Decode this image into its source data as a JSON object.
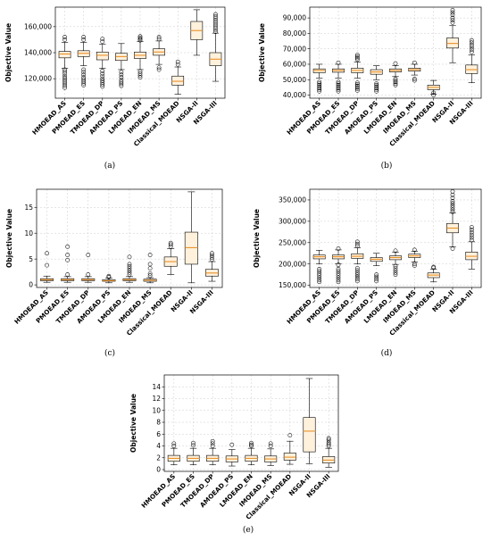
{
  "chart_data": [
    {
      "type": "box",
      "caption": "(a)",
      "ylabel": "Objective Value",
      "categories": [
        "HMOEAD_AS",
        "PMOEAD_ES",
        "TMOEAD_DP",
        "AMOEAD_PS",
        "LMOEAD_EN",
        "IMOEAD_MS",
        "Classical_MOEAD",
        "NSGA-II",
        "NSGA-III"
      ],
      "ylim": [
        105000,
        175000
      ],
      "yticks": [
        120000,
        140000,
        160000
      ],
      "ytick_labels": [
        "120,000",
        "140,000",
        "160,000"
      ],
      "boxes": [
        {
          "whislo": 128000,
          "q1": 136000,
          "med": 139000,
          "q3": 141000,
          "whishi": 148000,
          "fliers": [
            113000,
            114500,
            116000,
            117500,
            119000,
            120500,
            122000,
            124000,
            125500,
            127000,
            150000,
            152000
          ]
        },
        {
          "whislo": 130000,
          "q1": 137000,
          "med": 139500,
          "q3": 141500,
          "whishi": 148000,
          "fliers": [
            115000,
            116500,
            118000,
            119500,
            121000,
            123000,
            125000,
            127000,
            150000,
            152000
          ]
        },
        {
          "whislo": 128000,
          "q1": 134500,
          "med": 138000,
          "q3": 140500,
          "whishi": 146500,
          "fliers": [
            114000,
            115500,
            117000,
            118500,
            120000,
            122000,
            124000,
            126000,
            148500,
            150500
          ]
        },
        {
          "whislo": 127000,
          "q1": 134000,
          "med": 137000,
          "q3": 139500,
          "whishi": 147000,
          "fliers": [
            114500,
            116000,
            117500,
            119000,
            121000,
            123000,
            125000
          ]
        },
        {
          "whislo": 127000,
          "q1": 135500,
          "med": 138000,
          "q3": 140500,
          "whishi": 148500,
          "fliers": [
            121000,
            122500,
            124000,
            125500,
            149500,
            150500,
            151500,
            152500
          ]
        },
        {
          "whislo": 131000,
          "q1": 138000,
          "med": 140500,
          "q3": 143000,
          "whishi": 149000,
          "fliers": [
            127000,
            128500,
            150500,
            152000
          ]
        },
        {
          "whislo": 108000,
          "q1": 115000,
          "med": 118000,
          "q3": 122000,
          "whishi": 129000,
          "fliers": [
            131000,
            133000
          ]
        },
        {
          "whislo": 138000,
          "q1": 150000,
          "med": 157000,
          "q3": 164000,
          "whishi": 173000,
          "fliers": []
        },
        {
          "whislo": 118000,
          "q1": 130000,
          "med": 135000,
          "q3": 140000,
          "whishi": 155000,
          "fliers": [
            156000,
            157500,
            159000,
            160500,
            162000,
            163500,
            165000,
            166500,
            168000,
            169500
          ]
        }
      ]
    },
    {
      "type": "box",
      "caption": "(b)",
      "ylabel": "Objective Value",
      "categories": [
        "HMOEAD_AS",
        "PMOEAD_ES",
        "TMOEAD_DP",
        "AMOEAD_PS",
        "LMOEAD_EN",
        "IMOEAD_MS",
        "Classical_MOEAD",
        "NSGA-II",
        "NSGA-III"
      ],
      "ylim": [
        38000,
        97000
      ],
      "yticks": [
        40000,
        50000,
        60000,
        70000,
        80000,
        90000
      ],
      "ytick_labels": [
        "40,000",
        "50,000",
        "60,000",
        "70,000",
        "80,000",
        "90,000"
      ],
      "boxes": [
        {
          "whislo": 51000,
          "q1": 54500,
          "med": 56000,
          "q3": 57000,
          "whishi": 60000,
          "fliers": [
            42500,
            43500,
            44500,
            45500,
            46500,
            47500,
            48500
          ]
        },
        {
          "whislo": 51000,
          "q1": 54800,
          "med": 56000,
          "q3": 57000,
          "whishi": 60000,
          "fliers": [
            42500,
            43500,
            44500,
            45500,
            46500,
            47500,
            48500,
            61000
          ]
        },
        {
          "whislo": 51000,
          "q1": 54500,
          "med": 56000,
          "q3": 57500,
          "whishi": 61500,
          "fliers": [
            43000,
            44000,
            45000,
            46000,
            47000,
            48000,
            63000,
            64000,
            65000,
            66000
          ]
        },
        {
          "whislo": 50000,
          "q1": 53500,
          "med": 55000,
          "q3": 56500,
          "whishi": 59000,
          "fliers": [
            42500,
            43500,
            44500,
            45500,
            46500,
            47500
          ]
        },
        {
          "whislo": 52000,
          "q1": 55000,
          "med": 56000,
          "q3": 57000,
          "whishi": 59000,
          "fliers": [
            46500,
            47500,
            48500,
            49500,
            50500,
            60500
          ]
        },
        {
          "whislo": 53000,
          "q1": 55500,
          "med": 56500,
          "q3": 57500,
          "whishi": 60000,
          "fliers": [
            49500,
            50500,
            61000
          ]
        },
        {
          "whislo": 40500,
          "q1": 43500,
          "med": 45000,
          "q3": 46500,
          "whishi": 49500,
          "fliers": [
            40000,
            41500
          ]
        },
        {
          "whislo": 61000,
          "q1": 70500,
          "med": 73500,
          "q3": 77000,
          "whishi": 85000,
          "fliers": [
            87000,
            88500,
            90000,
            92000,
            93500,
            95000
          ]
        },
        {
          "whislo": 48000,
          "q1": 54000,
          "med": 56500,
          "q3": 59500,
          "whishi": 66000,
          "fliers": [
            68000,
            69500,
            71000,
            72500,
            74000,
            75500
          ]
        }
      ]
    },
    {
      "type": "box",
      "caption": "(c)",
      "ylabel": "Objective Value",
      "categories": [
        "HMOEAD_AS",
        "PMOEAD_ES",
        "TMOEAD_DP",
        "AMOEAD_PS",
        "LMOEAD_EN",
        "IMOEAD_MS",
        "Classical_MOEAD",
        "NSGA-II",
        "NSGA-III"
      ],
      "ylim": [
        -0.5,
        18.5
      ],
      "yticks": [
        0,
        5,
        10,
        15
      ],
      "ytick_labels": [
        "0",
        "5",
        "10",
        "15"
      ],
      "boxes": [
        {
          "whislo": 0.5,
          "q1": 0.8,
          "med": 1.0,
          "q3": 1.2,
          "whishi": 1.7,
          "fliers": [
            3.8,
            6.1
          ]
        },
        {
          "whislo": 0.5,
          "q1": 0.8,
          "med": 1.0,
          "q3": 1.2,
          "whishi": 1.6,
          "fliers": [
            2.0,
            4.8,
            5.8,
            7.4
          ]
        },
        {
          "whislo": 0.5,
          "q1": 0.8,
          "med": 1.0,
          "q3": 1.2,
          "whishi": 1.6,
          "fliers": [
            2.0,
            5.8
          ]
        },
        {
          "whislo": 0.4,
          "q1": 0.7,
          "med": 0.8,
          "q3": 1.0,
          "whishi": 1.3,
          "fliers": [
            1.5,
            1.7
          ]
        },
        {
          "whislo": 0.5,
          "q1": 0.8,
          "med": 1.0,
          "q3": 1.2,
          "whishi": 1.6,
          "fliers": [
            2.0,
            2.4,
            2.8,
            3.2,
            3.6,
            4.0,
            5.4
          ]
        },
        {
          "whislo": 0.4,
          "q1": 0.7,
          "med": 0.9,
          "q3": 1.1,
          "whishi": 1.4,
          "fliers": [
            1.8,
            2.2,
            3.2,
            4.0,
            5.8
          ]
        },
        {
          "whislo": 2.0,
          "q1": 3.6,
          "med": 4.5,
          "q3": 5.4,
          "whishi": 7.0,
          "fliers": [
            7.4,
            7.8,
            8.1
          ]
        },
        {
          "whislo": 0.4,
          "q1": 4.0,
          "med": 7.2,
          "q3": 10.2,
          "whishi": 18.0,
          "fliers": []
        },
        {
          "whislo": 0.7,
          "q1": 1.7,
          "med": 2.3,
          "q3": 3.0,
          "whishi": 4.5,
          "fliers": [
            4.9,
            5.3,
            5.7,
            6.1
          ]
        }
      ]
    },
    {
      "type": "box",
      "caption": "(d)",
      "ylabel": "Objective Value",
      "categories": [
        "HMOEAD_AS",
        "PMOEAD_ES",
        "TMOEAD_DP",
        "AMOEAD_PS",
        "LMOEAD_EN",
        "IMOEAD_MS",
        "Classical_MOEAD",
        "NSGA-II",
        "NSGA-III"
      ],
      "ylim": [
        145000,
        375000
      ],
      "yticks": [
        150000,
        200000,
        250000,
        300000,
        350000
      ],
      "ytick_labels": [
        "150,000",
        "200,000",
        "250,000",
        "300,000",
        "350,000"
      ],
      "boxes": [
        {
          "whislo": 200000,
          "q1": 212000,
          "med": 217000,
          "q3": 221000,
          "whishi": 232000,
          "fliers": [
            158000,
            163000,
            168000,
            173000,
            178000,
            183000,
            188000
          ]
        },
        {
          "whislo": 201000,
          "q1": 212000,
          "med": 217000,
          "q3": 221000,
          "whishi": 233000,
          "fliers": [
            158000,
            163000,
            168000,
            173000,
            178000,
            183000,
            188000,
            198000,
            236000
          ]
        },
        {
          "whislo": 200000,
          "q1": 213000,
          "med": 218000,
          "q3": 224000,
          "whishi": 238000,
          "fliers": [
            160000,
            165000,
            170000,
            175000,
            180000,
            185000,
            190000,
            242000,
            247000,
            252000
          ]
        },
        {
          "whislo": 196000,
          "q1": 206000,
          "med": 211000,
          "q3": 215000,
          "whishi": 225000,
          "fliers": [
            160000,
            165000,
            170000,
            175000
          ]
        },
        {
          "whislo": 199000,
          "q1": 210000,
          "med": 215000,
          "q3": 219000,
          "whishi": 228000,
          "fliers": [
            175000,
            180000,
            185000,
            190000,
            195000,
            231000
          ]
        },
        {
          "whislo": 205000,
          "q1": 215000,
          "med": 219000,
          "q3": 223000,
          "whishi": 230000,
          "fliers": [
            196000,
            200000,
            233000
          ]
        },
        {
          "whislo": 158000,
          "q1": 168000,
          "med": 174000,
          "q3": 179000,
          "whishi": 188000,
          "fliers": [
            191000,
            193000
          ]
        },
        {
          "whislo": 240000,
          "q1": 273000,
          "med": 284000,
          "q3": 295000,
          "whishi": 320000,
          "fliers": [
            236000,
            322000,
            327000,
            332000,
            337000,
            342000,
            347000,
            355000,
            362000,
            370000
          ]
        },
        {
          "whislo": 188000,
          "q1": 210000,
          "med": 218000,
          "q3": 228000,
          "whishi": 252000,
          "fliers": [
            256000,
            262000,
            268000,
            274000,
            280000,
            286000
          ]
        }
      ]
    },
    {
      "type": "box",
      "caption": "(e)",
      "ylabel": "Objective Value",
      "categories": [
        "HMOEAD_AS",
        "PMOEAD_ES",
        "TMOEAD_DP",
        "AMOEAD_PS",
        "LMOEAD_EN",
        "IMOEAD_MS",
        "Classical_MOEAD",
        "NSGA-II",
        "NSGA-III"
      ],
      "ylim": [
        -0.3,
        16.0
      ],
      "yticks": [
        0,
        2,
        4,
        6,
        8,
        10,
        12,
        14
      ],
      "ytick_labels": [
        "0",
        "2",
        "4",
        "6",
        "8",
        "10",
        "12",
        "14"
      ],
      "boxes": [
        {
          "whislo": 0.8,
          "q1": 1.4,
          "med": 1.9,
          "q3": 2.4,
          "whishi": 3.6,
          "fliers": [
            4.0,
            4.4
          ]
        },
        {
          "whislo": 0.8,
          "q1": 1.4,
          "med": 1.9,
          "q3": 2.4,
          "whishi": 3.6,
          "fliers": [
            4.1,
            4.5
          ]
        },
        {
          "whislo": 0.8,
          "q1": 1.4,
          "med": 1.9,
          "q3": 2.4,
          "whishi": 3.6,
          "fliers": [
            4.0,
            4.4,
            4.8
          ]
        },
        {
          "whislo": 0.6,
          "q1": 1.3,
          "med": 1.8,
          "q3": 2.3,
          "whishi": 3.4,
          "fliers": [
            4.2
          ]
        },
        {
          "whislo": 0.8,
          "q1": 1.4,
          "med": 1.9,
          "q3": 2.4,
          "whishi": 3.6,
          "fliers": [
            4.0,
            4.2,
            4.5
          ]
        },
        {
          "whislo": 0.7,
          "q1": 1.3,
          "med": 1.8,
          "q3": 2.3,
          "whishi": 3.5,
          "fliers": [
            4.0,
            4.4
          ]
        },
        {
          "whislo": 0.9,
          "q1": 1.6,
          "med": 2.1,
          "q3": 2.8,
          "whishi": 4.8,
          "fliers": [
            5.8
          ]
        },
        {
          "whislo": 1.0,
          "q1": 3.0,
          "med": 6.5,
          "q3": 8.8,
          "whishi": 15.4,
          "fliers": []
        },
        {
          "whislo": 0.4,
          "q1": 1.1,
          "med": 1.6,
          "q3": 2.2,
          "whishi": 3.6,
          "fliers": [
            4.0,
            4.3,
            4.6,
            5.0,
            5.3
          ]
        }
      ]
    }
  ]
}
